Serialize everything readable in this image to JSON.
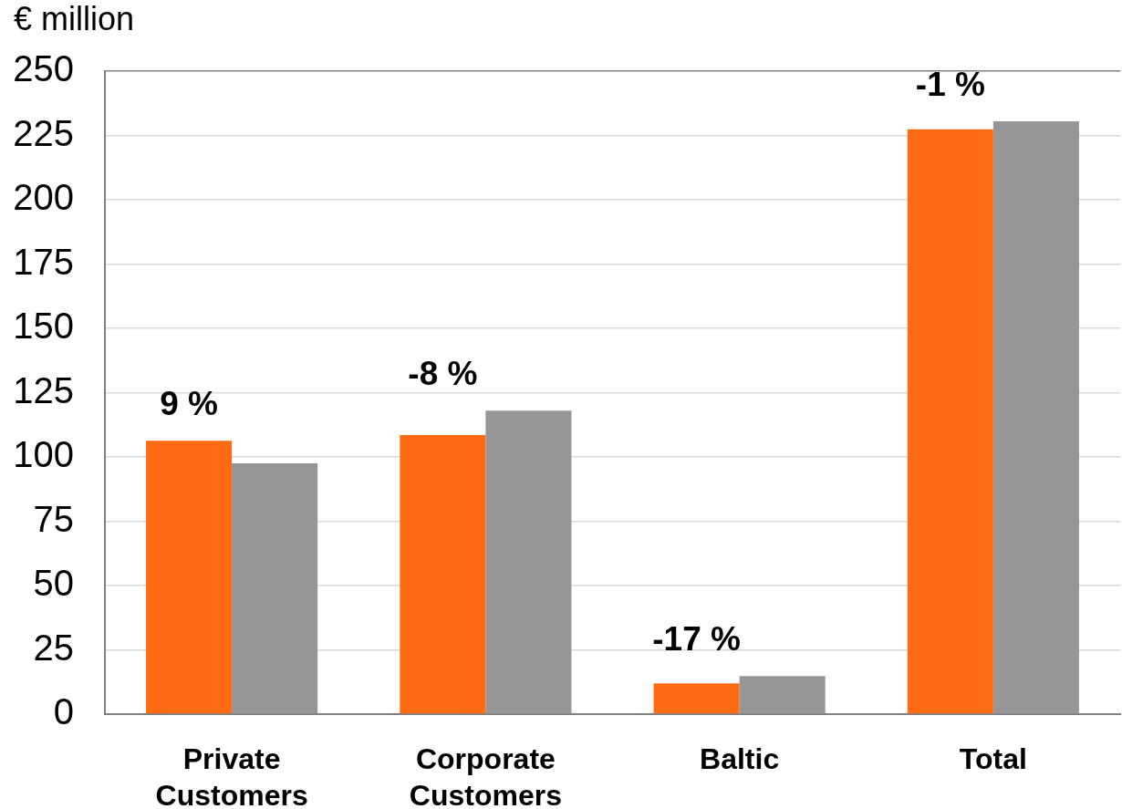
{
  "chart_data": {
    "type": "bar",
    "ylabel": "€ million",
    "categories": [
      "Private Customers",
      "Corporate Customers",
      "Baltic",
      "Total"
    ],
    "series": [
      {
        "color": "#ff6a13",
        "values": [
          106.3,
          108.5,
          12,
          227.4
        ]
      },
      {
        "color": "#969696",
        "values": [
          97.5,
          118,
          14.8,
          230.5
        ]
      }
    ],
    "ylim": [
      0,
      250
    ],
    "yticks": [
      0,
      25,
      50,
      75,
      100,
      125,
      150,
      175,
      200,
      225,
      250
    ],
    "grid": "y",
    "legend": false,
    "annotations": [
      "9 %",
      "-8 %",
      "-17 %",
      "-1 %"
    ]
  }
}
